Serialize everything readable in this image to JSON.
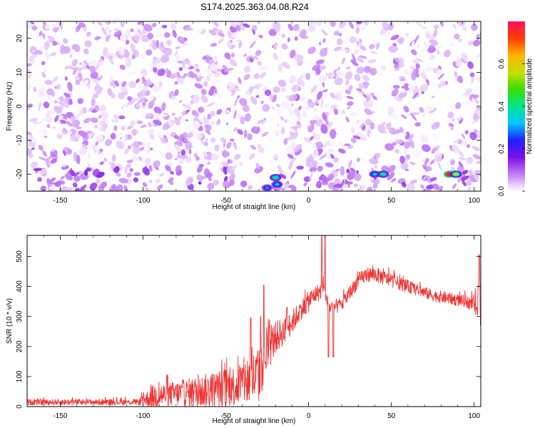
{
  "title": "S174.2025.363.04.08.R24",
  "chart_data": [
    {
      "type": "heatmap",
      "name": "spectrogram",
      "xlabel": "Height of straight line (km)",
      "ylabel": "Frequency (Hz)",
      "xlim": [
        -170,
        104
      ],
      "ylim": [
        -25,
        25
      ],
      "xticks": [
        -150,
        -100,
        -50,
        0,
        50,
        100
      ],
      "yticks": [
        -20,
        -10,
        0,
        10,
        20
      ],
      "colorbar": {
        "label": "Normalized spectral amplitude",
        "range": [
          0,
          0.8
        ],
        "ticks": [
          0.0,
          0.2,
          0.4,
          0.6
        ],
        "colormap": [
          "#ffffff",
          "#c07cf4",
          "#7a10ea",
          "#1f1fff",
          "#00c8ff",
          "#00e68a",
          "#3bdc00",
          "#c8e000",
          "#ffb400",
          "#ff3c00",
          "#ff1060"
        ]
      },
      "features": {
        "background_level": 0.07,
        "low_frequency_band": {
          "frequency_range": [
            -24,
            -18
          ],
          "x_range": [
            -170,
            104
          ],
          "level": 0.1
        },
        "empty_columns_x": [
          -25,
          45,
          83
        ],
        "hot_spots": [
          {
            "x": -20,
            "frequency": -21,
            "amplitude": 0.3
          },
          {
            "x": -19,
            "frequency": -23,
            "amplitude": 0.25
          },
          {
            "x": -25,
            "frequency": -24,
            "amplitude": 0.2
          },
          {
            "x": 40,
            "frequency": -20,
            "amplitude": 0.25
          },
          {
            "x": 45,
            "frequency": -20,
            "amplitude": 0.3
          },
          {
            "x": 85,
            "frequency": -20,
            "amplitude": 0.75
          },
          {
            "x": 89,
            "frequency": -20,
            "amplitude": 0.4
          }
        ]
      }
    },
    {
      "type": "line",
      "name": "snr",
      "xlabel": "Height of straight line (km)",
      "ylabel": "SNR (10 * v/v)",
      "xlim": [
        -170,
        104
      ],
      "ylim": [
        0,
        570
      ],
      "xticks": [
        -150,
        -100,
        -50,
        0,
        50,
        100
      ],
      "yticks": [
        0,
        100,
        200,
        300,
        400,
        500
      ],
      "color": "#ee3333",
      "envelope": {
        "x": [
          -170,
          -150,
          -120,
          -103,
          -98,
          -93,
          -85,
          -75,
          -65,
          -55,
          -45,
          -40,
          -35,
          -30,
          -25,
          -20,
          -15,
          -10,
          -5,
          0,
          3,
          6,
          9,
          12,
          15,
          20,
          25,
          30,
          35,
          40,
          45,
          50,
          55,
          60,
          65,
          70,
          75,
          80,
          85,
          90,
          95,
          100,
          102,
          103,
          104
        ],
        "baseline": [
          15,
          15,
          15,
          15,
          25,
          35,
          40,
          45,
          50,
          60,
          70,
          80,
          90,
          100,
          180,
          230,
          250,
          280,
          320,
          350,
          370,
          380,
          390,
          330,
          330,
          340,
          380,
          420,
          440,
          440,
          430,
          420,
          410,
          400,
          390,
          380,
          370,
          365,
          360,
          355,
          350,
          340,
          330,
          320,
          300
        ],
        "spread": [
          10,
          10,
          10,
          10,
          25,
          45,
          40,
          45,
          55,
          60,
          70,
          80,
          95,
          90,
          75,
          55,
          45,
          40,
          35,
          35,
          30,
          30,
          25,
          25,
          25,
          25,
          25,
          25,
          25,
          25,
          25,
          22,
          22,
          22,
          20,
          20,
          20,
          20,
          20,
          20,
          20,
          25,
          60,
          100,
          200
        ]
      },
      "spikes": [
        {
          "x": -29,
          "y": 300
        },
        {
          "x": -35,
          "y": 295
        },
        {
          "x": -27,
          "y": 405
        },
        {
          "x": -13,
          "y": 330
        },
        {
          "x": 8,
          "y": 570
        },
        {
          "x": 10,
          "y": 570
        },
        {
          "x": 12,
          "y": 165
        },
        {
          "x": 15,
          "y": 165
        },
        {
          "x": 103,
          "y": 505
        }
      ]
    }
  ]
}
